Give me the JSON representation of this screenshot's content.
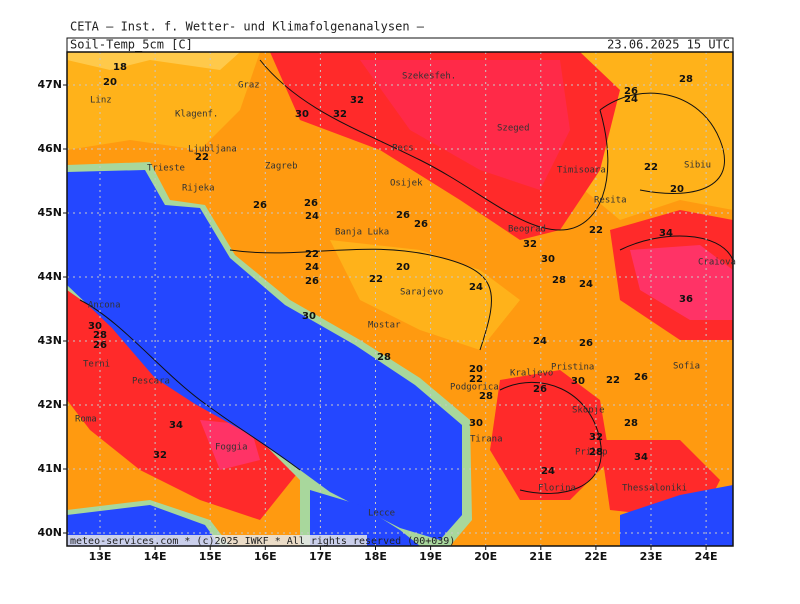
{
  "header": {
    "title": "CETA — Inst. f. Wetter- und Klimafolgenanalysen —",
    "product": "Soil-Temp_5cm [C]",
    "valid": "23.06.2025 15 UTC"
  },
  "map": {
    "lon_ticks": [
      {
        "value": 13,
        "label": "13E"
      },
      {
        "value": 14,
        "label": "14E"
      },
      {
        "value": 15,
        "label": "15E"
      },
      {
        "value": 16,
        "label": "16E"
      },
      {
        "value": 17,
        "label": "17E"
      },
      {
        "value": 18,
        "label": "18E"
      },
      {
        "value": 19,
        "label": "19E"
      },
      {
        "value": 20,
        "label": "20E"
      },
      {
        "value": 21,
        "label": "21E"
      },
      {
        "value": 22,
        "label": "22E"
      },
      {
        "value": 23,
        "label": "23E"
      },
      {
        "value": 24,
        "label": "24E"
      }
    ],
    "lat_ticks": [
      {
        "value": 47,
        "label": "47N"
      },
      {
        "value": 46,
        "label": "46N"
      },
      {
        "value": 45,
        "label": "45N"
      },
      {
        "value": 44,
        "label": "44N"
      },
      {
        "value": 43,
        "label": "43N"
      },
      {
        "value": 42,
        "label": "42N"
      },
      {
        "value": 41,
        "label": "41N"
      },
      {
        "value": 40,
        "label": "40N"
      }
    ],
    "cities": [
      "Linz",
      "Klagenf.",
      "Graz",
      "Szekesfeh.",
      "Szeged",
      "Pecs",
      "Ljubljana",
      "Zagreb",
      "Trieste",
      "Rijeka",
      "Osijek",
      "Timisoara",
      "Resita",
      "Beograd",
      "Sibiu",
      "Craiova",
      "Banja Luka",
      "Sarajevo",
      "Mostar",
      "Ancona",
      "Terni",
      "Pescara",
      "Roma",
      "Foggia",
      "Kraljevo",
      "Pristina",
      "Podgorica",
      "Skopje",
      "Tirana",
      "Prilep",
      "Sofia",
      "Thessaloniki",
      "Florina",
      "Lecce"
    ],
    "contour_labels": [
      18,
      20,
      32,
      30,
      32,
      22,
      26,
      24,
      26,
      26,
      22,
      24,
      26,
      22,
      20,
      24,
      26,
      24,
      28,
      22,
      20,
      22,
      28,
      24,
      34,
      36,
      24,
      26,
      22,
      26,
      30,
      26,
      20,
      22,
      28,
      30,
      32,
      28,
      28,
      34,
      24,
      34,
      32,
      30,
      28,
      26,
      32,
      30,
      28,
      30,
      26
    ],
    "footer": "meteo-services.com * (c)2025 IWKF * All rights reserved (00+039)"
  }
}
